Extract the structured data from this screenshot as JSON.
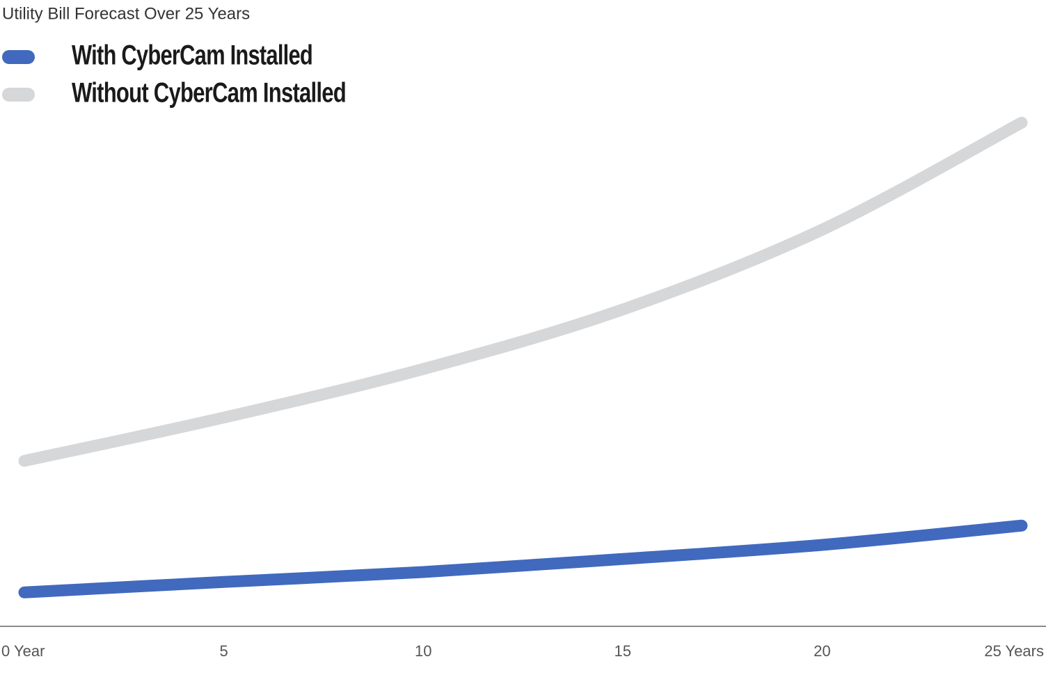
{
  "chart_data": {
    "type": "line",
    "title": "Utility Bill Forecast Over 25 Years",
    "x": [
      0,
      5,
      10,
      15,
      20,
      25
    ],
    "xlim": [
      0,
      25
    ],
    "xticks": [
      {
        "value": 0,
        "label": "0 Year"
      },
      5,
      10,
      15,
      20,
      {
        "value": 25,
        "label": "25 Years"
      }
    ],
    "ylim": [
      0,
      100
    ],
    "series": [
      {
        "name": "With CyberCam Installed",
        "color": "#4169be",
        "values": [
          6.5,
          8.5,
          10.4,
          12.9,
          15.6,
          19.3
        ]
      },
      {
        "name": "Without CyberCam Installed",
        "color": "#d6d7d9",
        "values": [
          31.7,
          40,
          49.3,
          60.7,
          76,
          96.5
        ]
      }
    ],
    "legend": "top-left",
    "grid": false
  }
}
